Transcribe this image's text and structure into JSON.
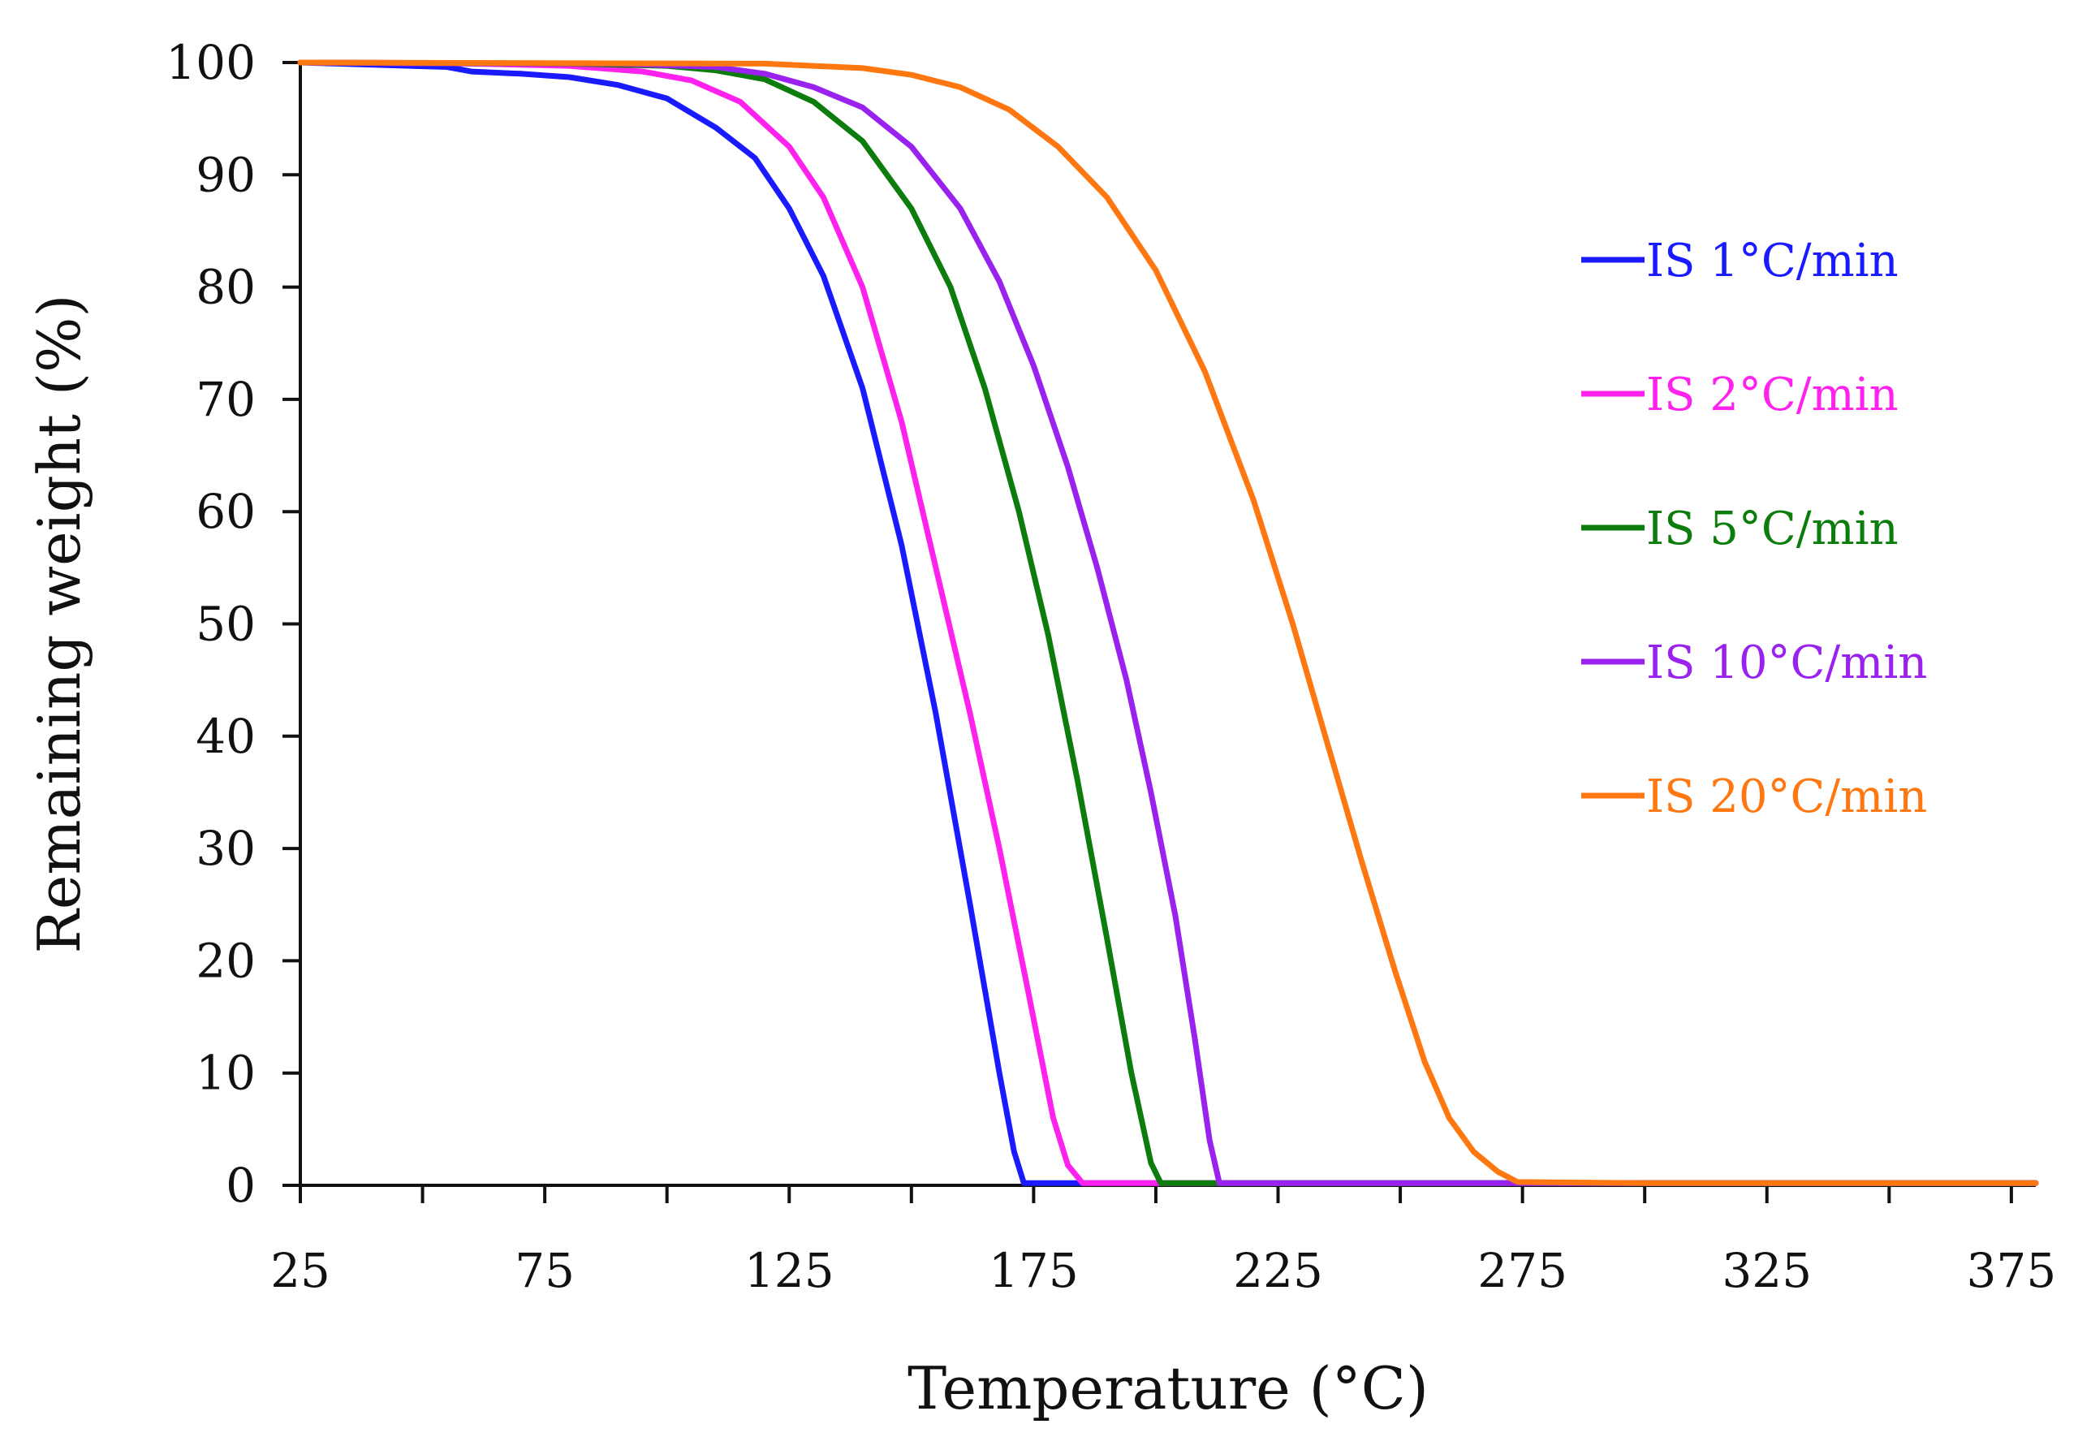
{
  "chart_data": {
    "type": "line",
    "title": "",
    "xlabel": "Temperature (°C)",
    "ylabel": "Remaining weight (%)",
    "xlim": [
      25,
      380
    ],
    "ylim": [
      0,
      100
    ],
    "x_major_ticks": [
      25,
      75,
      125,
      175,
      225,
      275,
      325,
      375
    ],
    "x_minor_ticks": [
      50,
      100,
      150,
      200,
      250,
      300,
      350
    ],
    "y_ticks": [
      0,
      10,
      20,
      30,
      40,
      50,
      60,
      70,
      80,
      90,
      100
    ],
    "grid": false,
    "legend_position": "right",
    "series": [
      {
        "name": "IS 1°C/min",
        "color": "#1a1aff",
        "points": [
          [
            25,
            100
          ],
          [
            40,
            99.8
          ],
          [
            55,
            99.6
          ],
          [
            60,
            99.2
          ],
          [
            70,
            99.0
          ],
          [
            80,
            98.7
          ],
          [
            90,
            98.0
          ],
          [
            100,
            96.8
          ],
          [
            110,
            94.2
          ],
          [
            118,
            91.5
          ],
          [
            125,
            87.0
          ],
          [
            132,
            81.0
          ],
          [
            140,
            71.0
          ],
          [
            148,
            57.0
          ],
          [
            155,
            42.0
          ],
          [
            162,
            25.0
          ],
          [
            168,
            10.0
          ],
          [
            171,
            3.0
          ],
          [
            173,
            0.2
          ],
          [
            180,
            0.2
          ],
          [
            380,
            0.2
          ]
        ]
      },
      {
        "name": "IS 2°C/min",
        "color": "#ff22ee",
        "points": [
          [
            25,
            100
          ],
          [
            60,
            99.9
          ],
          [
            80,
            99.7
          ],
          [
            95,
            99.2
          ],
          [
            105,
            98.4
          ],
          [
            115,
            96.5
          ],
          [
            125,
            92.5
          ],
          [
            132,
            88.0
          ],
          [
            140,
            80.0
          ],
          [
            148,
            68.0
          ],
          [
            155,
            55.0
          ],
          [
            162,
            42.0
          ],
          [
            168,
            30.0
          ],
          [
            174,
            17.0
          ],
          [
            179,
            6.0
          ],
          [
            182,
            1.8
          ],
          [
            185,
            0.2
          ],
          [
            200,
            0.2
          ],
          [
            380,
            0.2
          ]
        ]
      },
      {
        "name": "IS 5°C/min",
        "color": "#0c7d0c",
        "points": [
          [
            25,
            100
          ],
          [
            80,
            99.9
          ],
          [
            100,
            99.7
          ],
          [
            110,
            99.3
          ],
          [
            120,
            98.5
          ],
          [
            130,
            96.5
          ],
          [
            140,
            93.0
          ],
          [
            150,
            87.0
          ],
          [
            158,
            80.0
          ],
          [
            165,
            71.0
          ],
          [
            172,
            60.0
          ],
          [
            178,
            49.0
          ],
          [
            184,
            36.0
          ],
          [
            190,
            22.0
          ],
          [
            195,
            10.0
          ],
          [
            199,
            2.0
          ],
          [
            201,
            0.2
          ],
          [
            215,
            0.2
          ],
          [
            380,
            0.2
          ]
        ]
      },
      {
        "name": "IS 10°C/min",
        "color": "#9922ee",
        "points": [
          [
            25,
            100
          ],
          [
            90,
            99.9
          ],
          [
            110,
            99.6
          ],
          [
            120,
            99.0
          ],
          [
            130,
            97.8
          ],
          [
            140,
            96.0
          ],
          [
            150,
            92.5
          ],
          [
            160,
            87.0
          ],
          [
            168,
            80.5
          ],
          [
            175,
            73.0
          ],
          [
            182,
            64.0
          ],
          [
            188,
            55.0
          ],
          [
            194,
            45.0
          ],
          [
            199,
            35.0
          ],
          [
            204,
            24.0
          ],
          [
            208,
            13.0
          ],
          [
            211,
            4.0
          ],
          [
            213,
            0.2
          ],
          [
            225,
            0.2
          ],
          [
            380,
            0.2
          ]
        ]
      },
      {
        "name": "IS 20°C/min",
        "color": "#ff7711",
        "points": [
          [
            25,
            100
          ],
          [
            120,
            99.9
          ],
          [
            140,
            99.5
          ],
          [
            150,
            98.9
          ],
          [
            160,
            97.8
          ],
          [
            170,
            95.8
          ],
          [
            180,
            92.5
          ],
          [
            190,
            88.0
          ],
          [
            200,
            81.5
          ],
          [
            210,
            72.5
          ],
          [
            220,
            61.0
          ],
          [
            228,
            50.0
          ],
          [
            235,
            39.5
          ],
          [
            242,
            29.0
          ],
          [
            249,
            19.0
          ],
          [
            255,
            11.0
          ],
          [
            260,
            6.0
          ],
          [
            265,
            3.0
          ],
          [
            270,
            1.2
          ],
          [
            274,
            0.3
          ],
          [
            300,
            0.2
          ],
          [
            380,
            0.2
          ]
        ]
      }
    ]
  }
}
